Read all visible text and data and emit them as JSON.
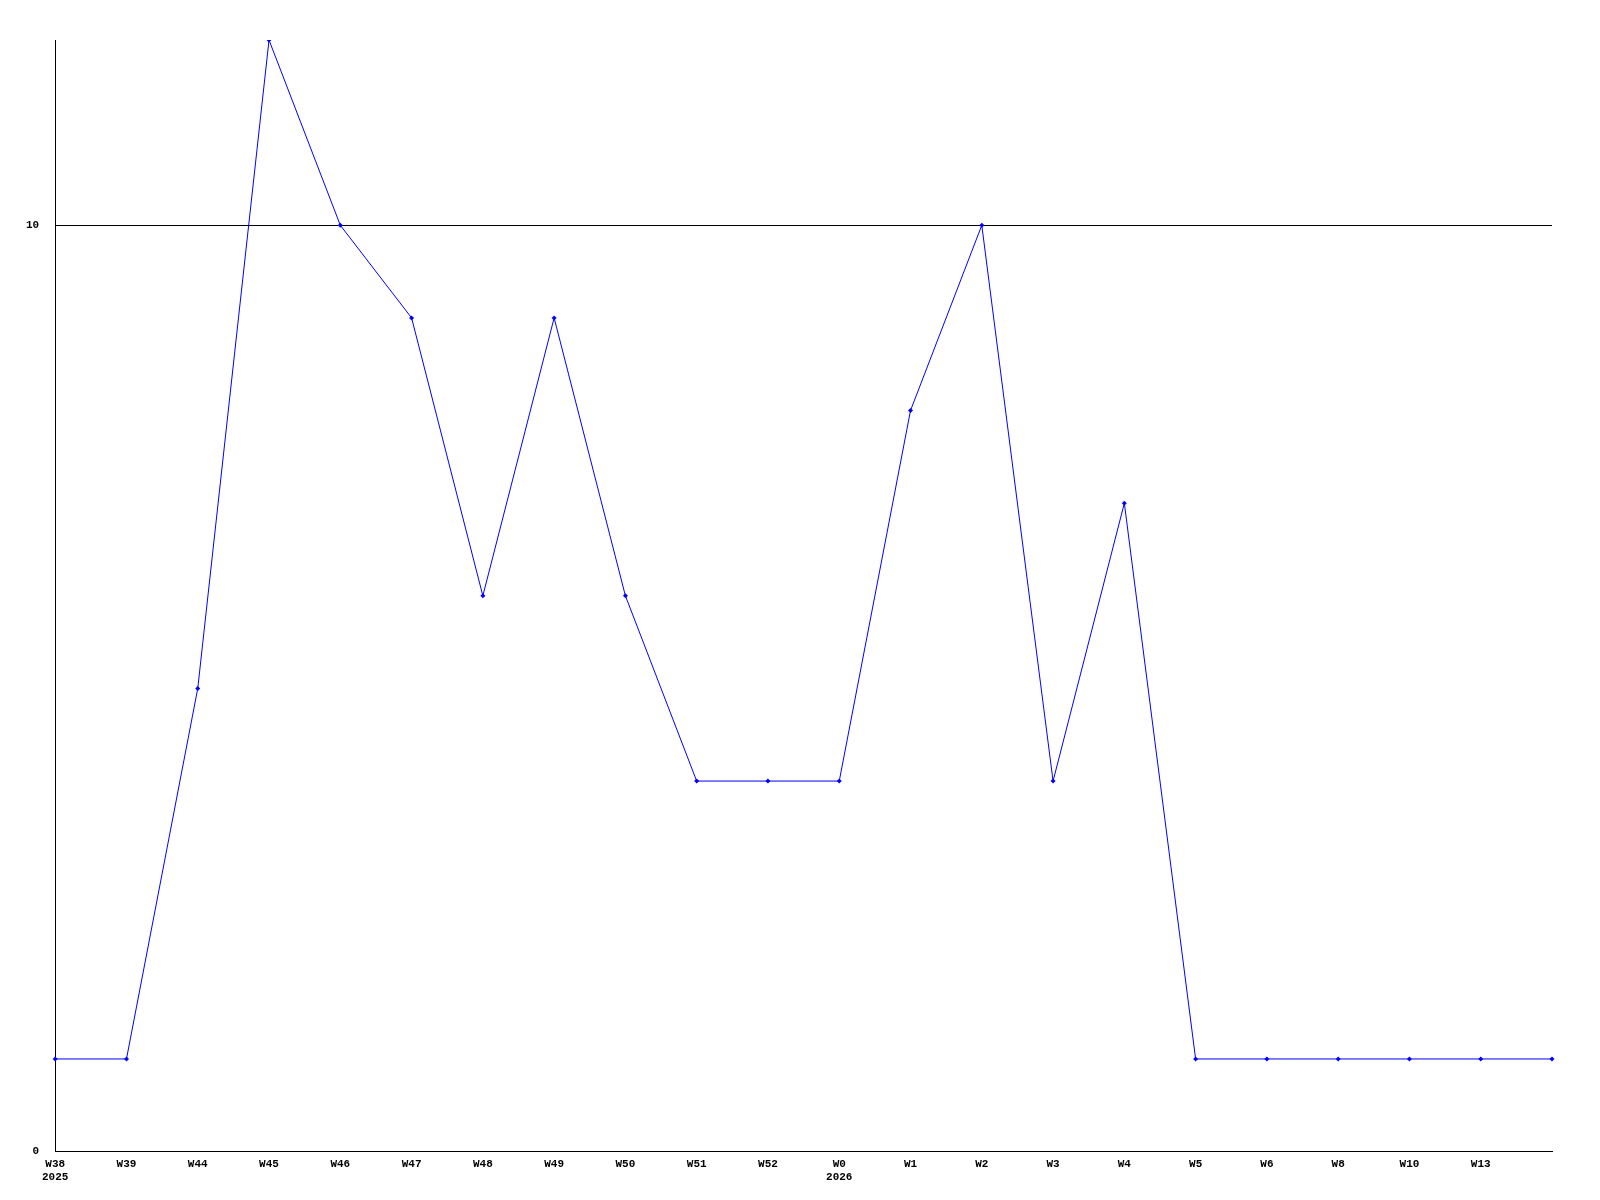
{
  "chart_data": {
    "type": "line",
    "categories": [
      "W38\n2025",
      "W39",
      "W44",
      "W45",
      "W46",
      "W47",
      "W48",
      "W49",
      "W50",
      "W51",
      "W52",
      "W0\n2026",
      "W1",
      "W2",
      "W3",
      "W4",
      "W5",
      "W6",
      "W8",
      "W10",
      "W13",
      null
    ],
    "series": [
      {
        "color": "#0000ff",
        "values": [
          1,
          1,
          5,
          12,
          10,
          9,
          6,
          9,
          6,
          4,
          4,
          4,
          8,
          10,
          4,
          7,
          1,
          1,
          1,
          1,
          1,
          1
        ]
      }
    ],
    "ylim": [
      0,
      12
    ],
    "yticks": [
      0,
      10
    ],
    "grid": "y",
    "legend": false,
    "marker": "diamond",
    "line_style": "solid"
  }
}
